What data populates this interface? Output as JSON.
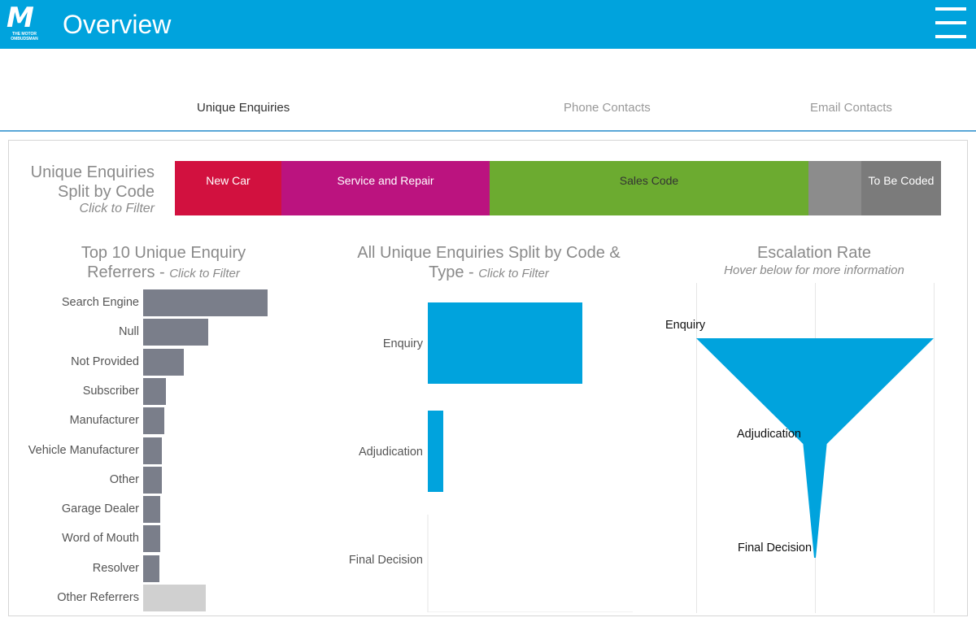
{
  "header": {
    "logo_mark": "M",
    "logo_sub_1": "THE MOTOR",
    "logo_sub_2": "OMBUDSMAN",
    "title": "Overview"
  },
  "tabs": [
    {
      "label": "Unique Enquiries",
      "active": true
    },
    {
      "label": "Phone Contacts",
      "active": false
    },
    {
      "label": "Email Contacts",
      "active": false
    }
  ],
  "code_split": {
    "title_line1": "Unique Enquiries",
    "title_line2": "Split by Code",
    "hint": "Click to Filter",
    "segments": [
      {
        "label": "New Car",
        "color": "#d2113f",
        "share": 0.139
      },
      {
        "label": "Service and Repair",
        "color": "#bb137f",
        "share": 0.272
      },
      {
        "label": "Sales Code",
        "color": "#6cab30",
        "share": 0.416,
        "text_color": "#333333"
      },
      {
        "label": "",
        "color": "#8c8c8c",
        "share": 0.069
      },
      {
        "label": "To Be Coded",
        "color": "#7b7b7b",
        "share": 0.104
      }
    ]
  },
  "referrers": {
    "title_line1": "Top 10 Unique Enquiry",
    "title_line2": "Referrers - ",
    "hint": "Click to Filter",
    "bar_color": "#7a7e8a",
    "other_color": "#d0d0d0",
    "items": [
      {
        "label": "Search Engine",
        "value": 100
      },
      {
        "label": "Null",
        "value": 52
      },
      {
        "label": "Not Provided",
        "value": 33
      },
      {
        "label": "Subscriber",
        "value": 18
      },
      {
        "label": "Manufacturer",
        "value": 17
      },
      {
        "label": "Vehicle Manufacturer",
        "value": 15
      },
      {
        "label": "Other",
        "value": 15
      },
      {
        "label": "Garage  Dealer",
        "value": 14
      },
      {
        "label": "Word of Mouth",
        "value": 14
      },
      {
        "label": "Resolver",
        "value": 13
      },
      {
        "label": "Other Referrers",
        "value": 50,
        "other": true
      }
    ]
  },
  "by_type": {
    "title_line1": "All Unique Enquiries Split by Code &",
    "title_line2": "Type - ",
    "hint": "Click to Filter",
    "bar_color": "#00a3dd",
    "items": [
      {
        "label": "Enquiry",
        "value": 100
      },
      {
        "label": "Adjudication",
        "value": 10
      },
      {
        "label": "Final Decision",
        "value": 0
      }
    ]
  },
  "escalation": {
    "title": "Escalation Rate",
    "hint": "Hover below for more information",
    "color": "#00a3dd",
    "stages": [
      {
        "label": "Enquiry",
        "value": 100
      },
      {
        "label": "Adjudication",
        "value": 10
      },
      {
        "label": "Final Decision",
        "value": 0
      }
    ]
  }
}
